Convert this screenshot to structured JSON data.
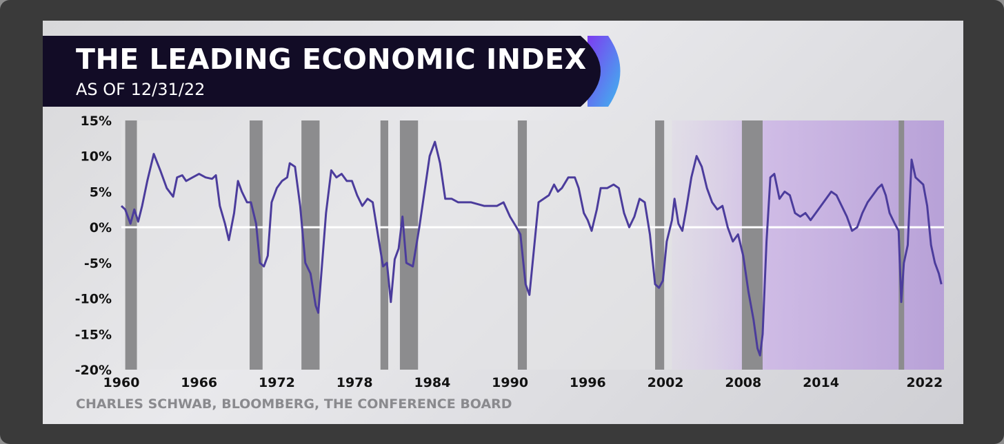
{
  "title": "THE LEADING ECONOMIC INDEX",
  "subtitle": "AS OF 12/31/22",
  "source": "CHARLES SCHWAB, BLOOMBERG, THE CONFERENCE BOARD",
  "colors": {
    "line": "#4b3c9c",
    "recession": "#8c8c8e",
    "title_bg": "#120c26",
    "accent_purple": "#7d3cf0",
    "accent_blue": "#3fb6ef",
    "shade": "#b79ad8"
  },
  "chart_data": {
    "type": "line",
    "xlabel": "",
    "ylabel": "",
    "xlim": [
      1960,
      2023.5
    ],
    "ylim": [
      -20,
      15
    ],
    "x_ticks": [
      1960,
      1966,
      1972,
      1978,
      1984,
      1990,
      1996,
      2002,
      2008,
      2014,
      2022
    ],
    "y_ticks": [
      15,
      10,
      5,
      0,
      -5,
      -10,
      -15,
      -20
    ],
    "y_tick_labels": [
      "15%",
      "10%",
      "5%",
      "0%",
      "-5%",
      "-10%",
      "-15%",
      "-20%"
    ],
    "recessions": [
      [
        1960.3,
        1961.2
      ],
      [
        1969.9,
        1970.9
      ],
      [
        1973.9,
        1975.3
      ],
      [
        1980.0,
        1980.6
      ],
      [
        1981.5,
        1982.9
      ],
      [
        1990.6,
        1991.3
      ],
      [
        2001.2,
        2001.9
      ],
      [
        2007.9,
        2009.5
      ],
      [
        2020.0,
        2020.4
      ]
    ],
    "series": [
      {
        "values": [
          [
            1960.0,
            3.0
          ],
          [
            1960.3,
            2.5
          ],
          [
            1960.7,
            0.5
          ],
          [
            1961.0,
            2.5
          ],
          [
            1961.3,
            0.8
          ],
          [
            1961.6,
            3.0
          ],
          [
            1962.0,
            6.5
          ],
          [
            1962.5,
            10.3
          ],
          [
            1963.0,
            8.0
          ],
          [
            1963.5,
            5.5
          ],
          [
            1964.0,
            4.3
          ],
          [
            1964.3,
            7.0
          ],
          [
            1964.7,
            7.3
          ],
          [
            1965.0,
            6.5
          ],
          [
            1965.5,
            7.0
          ],
          [
            1966.0,
            7.5
          ],
          [
            1966.5,
            7.0
          ],
          [
            1967.0,
            6.8
          ],
          [
            1967.3,
            7.3
          ],
          [
            1967.6,
            3.0
          ],
          [
            1968.0,
            0.5
          ],
          [
            1968.3,
            -1.8
          ],
          [
            1968.7,
            2.0
          ],
          [
            1969.0,
            6.5
          ],
          [
            1969.3,
            5.0
          ],
          [
            1969.7,
            3.5
          ],
          [
            1970.0,
            3.5
          ],
          [
            1970.4,
            0.5
          ],
          [
            1970.7,
            -5.0
          ],
          [
            1971.0,
            -5.5
          ],
          [
            1971.3,
            -4.0
          ],
          [
            1971.6,
            3.5
          ],
          [
            1972.0,
            5.5
          ],
          [
            1972.4,
            6.5
          ],
          [
            1972.8,
            7.0
          ],
          [
            1973.0,
            9.0
          ],
          [
            1973.4,
            8.5
          ],
          [
            1973.8,
            3.0
          ],
          [
            1974.2,
            -5.0
          ],
          [
            1974.6,
            -6.5
          ],
          [
            1975.0,
            -11.0
          ],
          [
            1975.2,
            -12.0
          ],
          [
            1975.5,
            -5.0
          ],
          [
            1975.8,
            2.0
          ],
          [
            1976.2,
            8.0
          ],
          [
            1976.6,
            7.0
          ],
          [
            1977.0,
            7.5
          ],
          [
            1977.4,
            6.5
          ],
          [
            1977.8,
            6.5
          ],
          [
            1978.2,
            4.5
          ],
          [
            1978.6,
            3.0
          ],
          [
            1979.0,
            4.0
          ],
          [
            1979.4,
            3.5
          ],
          [
            1979.8,
            -1.0
          ],
          [
            1980.2,
            -5.5
          ],
          [
            1980.5,
            -5.0
          ],
          [
            1980.8,
            -10.5
          ],
          [
            1981.1,
            -4.5
          ],
          [
            1981.4,
            -3.0
          ],
          [
            1981.7,
            1.5
          ],
          [
            1982.0,
            -5.0
          ],
          [
            1982.5,
            -5.5
          ],
          [
            1983.0,
            0.0
          ],
          [
            1983.4,
            5.0
          ],
          [
            1983.8,
            10.0
          ],
          [
            1984.2,
            12.0
          ],
          [
            1984.6,
            9.0
          ],
          [
            1985.0,
            4.0
          ],
          [
            1985.5,
            4.0
          ],
          [
            1986.0,
            3.5
          ],
          [
            1987.0,
            3.5
          ],
          [
            1988.0,
            3.0
          ],
          [
            1988.5,
            3.0
          ],
          [
            1989.0,
            3.0
          ],
          [
            1989.5,
            3.5
          ],
          [
            1990.0,
            1.5
          ],
          [
            1990.5,
            0.0
          ],
          [
            1990.8,
            -1.0
          ],
          [
            1991.2,
            -8.0
          ],
          [
            1991.5,
            -9.5
          ],
          [
            1991.8,
            -4.0
          ],
          [
            1992.2,
            3.5
          ],
          [
            1992.6,
            4.0
          ],
          [
            1993.0,
            4.5
          ],
          [
            1993.4,
            6.0
          ],
          [
            1993.7,
            5.0
          ],
          [
            1994.0,
            5.5
          ],
          [
            1994.5,
            7.0
          ],
          [
            1995.0,
            7.0
          ],
          [
            1995.3,
            5.5
          ],
          [
            1995.7,
            2.0
          ],
          [
            1996.0,
            1.0
          ],
          [
            1996.3,
            -0.5
          ],
          [
            1996.7,
            2.5
          ],
          [
            1997.0,
            5.5
          ],
          [
            1997.5,
            5.5
          ],
          [
            1998.0,
            6.0
          ],
          [
            1998.4,
            5.5
          ],
          [
            1998.8,
            2.0
          ],
          [
            1999.2,
            0.0
          ],
          [
            1999.6,
            1.5
          ],
          [
            2000.0,
            4.0
          ],
          [
            2000.4,
            3.5
          ],
          [
            2000.8,
            -1.0
          ],
          [
            2001.2,
            -8.0
          ],
          [
            2001.5,
            -8.5
          ],
          [
            2001.8,
            -7.5
          ],
          [
            2002.1,
            -2.0
          ],
          [
            2002.5,
            1.0
          ],
          [
            2002.7,
            4.0
          ],
          [
            2003.0,
            0.5
          ],
          [
            2003.3,
            -0.5
          ],
          [
            2003.6,
            2.5
          ],
          [
            2004.0,
            7.0
          ],
          [
            2004.4,
            10.0
          ],
          [
            2004.8,
            8.5
          ],
          [
            2005.2,
            5.5
          ],
          [
            2005.6,
            3.5
          ],
          [
            2006.0,
            2.5
          ],
          [
            2006.4,
            3.0
          ],
          [
            2006.8,
            0.0
          ],
          [
            2007.2,
            -2.0
          ],
          [
            2007.6,
            -1.0
          ],
          [
            2008.0,
            -4.0
          ],
          [
            2008.4,
            -9.0
          ],
          [
            2008.8,
            -13.0
          ],
          [
            2009.1,
            -17.0
          ],
          [
            2009.3,
            -18.0
          ],
          [
            2009.5,
            -15.0
          ],
          [
            2009.8,
            -2.0
          ],
          [
            2010.1,
            7.0
          ],
          [
            2010.4,
            7.5
          ],
          [
            2010.8,
            4.0
          ],
          [
            2011.2,
            5.0
          ],
          [
            2011.6,
            4.5
          ],
          [
            2012.0,
            2.0
          ],
          [
            2012.4,
            1.5
          ],
          [
            2012.8,
            2.0
          ],
          [
            2013.2,
            1.0
          ],
          [
            2013.6,
            2.0
          ],
          [
            2014.0,
            3.0
          ],
          [
            2014.4,
            4.0
          ],
          [
            2014.8,
            5.0
          ],
          [
            2015.2,
            4.5
          ],
          [
            2015.6,
            3.0
          ],
          [
            2016.0,
            1.5
          ],
          [
            2016.4,
            -0.5
          ],
          [
            2016.8,
            0.0
          ],
          [
            2017.2,
            2.0
          ],
          [
            2017.6,
            3.5
          ],
          [
            2018.0,
            4.5
          ],
          [
            2018.4,
            5.5
          ],
          [
            2018.7,
            6.0
          ],
          [
            2019.0,
            4.5
          ],
          [
            2019.3,
            2.0
          ],
          [
            2019.7,
            0.5
          ],
          [
            2020.0,
            -0.5
          ],
          [
            2020.2,
            -10.5
          ],
          [
            2020.4,
            -5.0
          ],
          [
            2020.7,
            -2.5
          ],
          [
            2021.0,
            9.5
          ],
          [
            2021.3,
            7.0
          ],
          [
            2021.6,
            6.5
          ],
          [
            2021.9,
            6.0
          ],
          [
            2022.2,
            3.0
          ],
          [
            2022.5,
            -2.5
          ],
          [
            2022.8,
            -5.0
          ],
          [
            2023.1,
            -6.5
          ],
          [
            2023.3,
            -8.0
          ]
        ]
      }
    ]
  }
}
